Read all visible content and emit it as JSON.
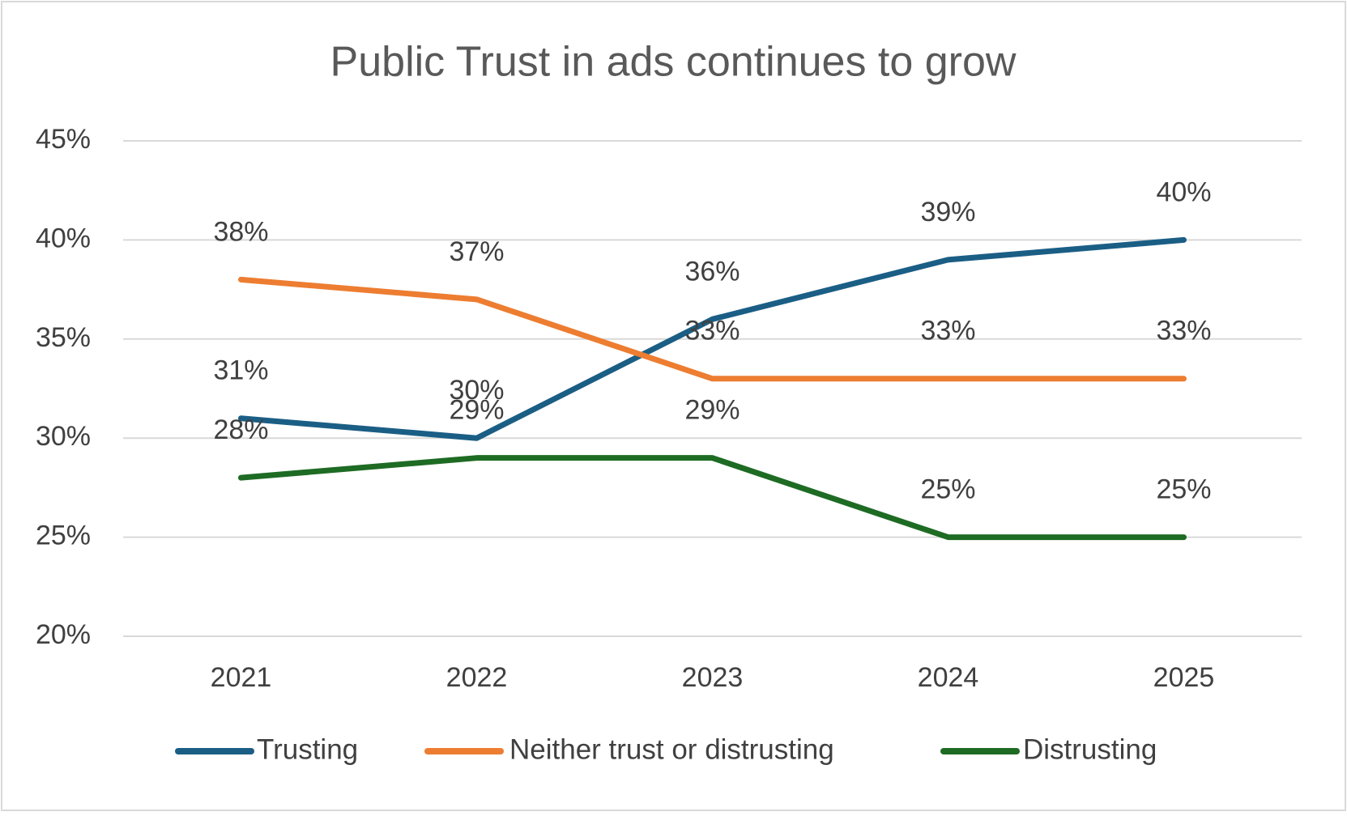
{
  "chart_data": {
    "type": "line",
    "title": "Public Trust in ads continues to grow",
    "categories": [
      "2021",
      "2022",
      "2023",
      "2024",
      "2025"
    ],
    "series": [
      {
        "name": "Trusting",
        "color": "#1b5e85",
        "values": [
          31,
          30,
          36,
          39,
          40
        ],
        "value_labels": [
          "31%",
          "30%",
          "36%",
          "39%",
          "40%"
        ]
      },
      {
        "name": "Neither trust or distrusting",
        "color": "#ed7d31",
        "values": [
          38,
          37,
          33,
          33,
          33
        ],
        "value_labels": [
          "38%",
          "37%",
          "33%",
          "33%",
          "33%"
        ]
      },
      {
        "name": "Distrusting",
        "color": "#1e6b24",
        "values": [
          28,
          29,
          29,
          25,
          25
        ],
        "value_labels": [
          "28%",
          "29%",
          "29%",
          "25%",
          "25%"
        ]
      }
    ],
    "ylim": [
      20,
      45
    ],
    "yticks": [
      {
        "value": 20,
        "label": "20%"
      },
      {
        "value": 25,
        "label": "25%"
      },
      {
        "value": 30,
        "label": "30%"
      },
      {
        "value": 35,
        "label": "35%"
      },
      {
        "value": 40,
        "label": "40%"
      },
      {
        "value": 45,
        "label": "45%"
      }
    ],
    "grid": true,
    "legend": "bottom"
  }
}
